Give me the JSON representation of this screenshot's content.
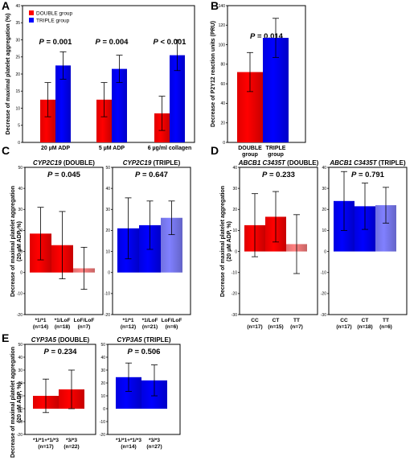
{
  "colors": {
    "double": "#ff0000",
    "triple": "#0000ff",
    "double_light": "#ff8080",
    "triple_light": "#8080ff"
  },
  "chart_data": [
    {
      "id": "A",
      "type": "bar",
      "panel_label": "A",
      "ylabel": "Decrease of maximal platelet aggregation (%)",
      "ylim": [
        0,
        40
      ],
      "yticks": [
        0,
        5,
        10,
        15,
        20,
        25,
        30,
        35,
        40
      ],
      "legend": [
        "DOUBLE group",
        "TRIPLE group"
      ],
      "legend_position": "top-left",
      "categories": [
        "20 µM ADP",
        "5 µM ADP",
        "6 µg/ml collagen"
      ],
      "p_values": [
        "P = 0.001",
        "P = 0.004",
        "P < 0.001"
      ],
      "series": [
        {
          "name": "DOUBLE group",
          "values": [
            12.5,
            12.5,
            8.5
          ],
          "err": [
            5,
            5,
            5
          ]
        },
        {
          "name": "TRIPLE group",
          "values": [
            22.5,
            21.5,
            25.5
          ],
          "err": [
            4,
            4,
            4.5
          ]
        }
      ]
    },
    {
      "id": "B",
      "type": "bar",
      "panel_label": "B",
      "ylabel": "Decrease of P2Y12 reaction units (PRU)",
      "ylim": [
        0,
        140
      ],
      "yticks": [
        0,
        20,
        40,
        60,
        80,
        100,
        120,
        140
      ],
      "categories": [
        "DOUBLE group",
        "TRIPLE group"
      ],
      "p_value": "P = 0.014",
      "values": [
        72,
        107
      ],
      "err": [
        20,
        20
      ]
    },
    {
      "id": "C1",
      "type": "bar",
      "panel_label": "C",
      "title": "CYP2C19 (DOUBLE)",
      "p_value": "P = 0.045",
      "ylabel": "Decrease of maximal platelet aggregation (20 µM ADP, %)",
      "ylim": [
        -20,
        50
      ],
      "yticks": [
        -20,
        -10,
        0,
        10,
        20,
        30,
        40,
        50
      ],
      "categories": [
        "*1/*1",
        "*1/LoF",
        "LoF/LoF"
      ],
      "ns": [
        "(n=14)",
        "(n=18)",
        "(n=7)"
      ],
      "values": [
        18.5,
        13,
        2
      ],
      "err": [
        12.5,
        16,
        10
      ]
    },
    {
      "id": "C2",
      "type": "bar",
      "title": "CYP2C19 (TRIPLE)",
      "p_value": "P = 0.647",
      "ylim": [
        -20,
        50
      ],
      "yticks": [
        -20,
        -10,
        0,
        10,
        20,
        30,
        40,
        50
      ],
      "categories": [
        "*1/*1",
        "*1/LoF",
        "LoF/LoF"
      ],
      "ns": [
        "(n=12)",
        "(n=21)",
        "(n=6)"
      ],
      "values": [
        21,
        22.5,
        26
      ],
      "err": [
        14.5,
        11.5,
        8
      ]
    },
    {
      "id": "D1",
      "type": "bar",
      "panel_label": "D",
      "title": "ABCB1 C3435T (DOUBLE)",
      "p_value": "P = 0.233",
      "ylabel": "Decrease of maximal platelet aggregation (20 µM ADP, %)",
      "ylim": [
        -30,
        40
      ],
      "yticks": [
        -30,
        -20,
        -10,
        0,
        10,
        20,
        30,
        40
      ],
      "categories": [
        "CC",
        "CT",
        "TT"
      ],
      "ns": [
        "(n=17)",
        "(n=15)",
        "(n=7)"
      ],
      "values": [
        12.5,
        16.5,
        3.5
      ],
      "err": [
        15,
        12,
        14
      ]
    },
    {
      "id": "D2",
      "type": "bar",
      "title": "ABCB1 C3435T (TRIPLE)",
      "p_value": "P = 0.791",
      "ylim": [
        -30,
        40
      ],
      "yticks": [
        -30,
        -20,
        -10,
        0,
        10,
        20,
        30,
        40
      ],
      "categories": [
        "CC",
        "CT",
        "TT"
      ],
      "ns": [
        "(n=17)",
        "(n=18)",
        "(n=6)"
      ],
      "values": [
        24,
        21.5,
        22
      ],
      "err": [
        14,
        11,
        8.5
      ]
    },
    {
      "id": "E1",
      "type": "bar",
      "panel_label": "E",
      "title": "CYP3A5 (DOUBLE)",
      "p_value": "P = 0.234",
      "ylabel": "Decrease of maximal platelet aggregation (20 µM ADP, %)",
      "ylim": [
        -20,
        50
      ],
      "yticks": [
        -20,
        -10,
        0,
        10,
        20,
        30,
        40,
        50
      ],
      "categories": [
        "*1/*1+*1/*3",
        "*3/*3"
      ],
      "ns": [
        "(n=17)",
        "(n=22)"
      ],
      "values": [
        10,
        15
      ],
      "err": [
        13,
        15
      ]
    },
    {
      "id": "E2",
      "type": "bar",
      "title": "CYP3A5 (TRIPLE)",
      "p_value": "P = 0.506",
      "ylim": [
        -20,
        50
      ],
      "yticks": [
        -20,
        -10,
        0,
        10,
        20,
        30,
        40,
        50
      ],
      "categories": [
        "*1/*1+*1/*3",
        "*3/*3"
      ],
      "ns": [
        "(n=14)",
        "(n=27)"
      ],
      "values": [
        24.5,
        22
      ],
      "err": [
        11,
        12
      ]
    }
  ]
}
